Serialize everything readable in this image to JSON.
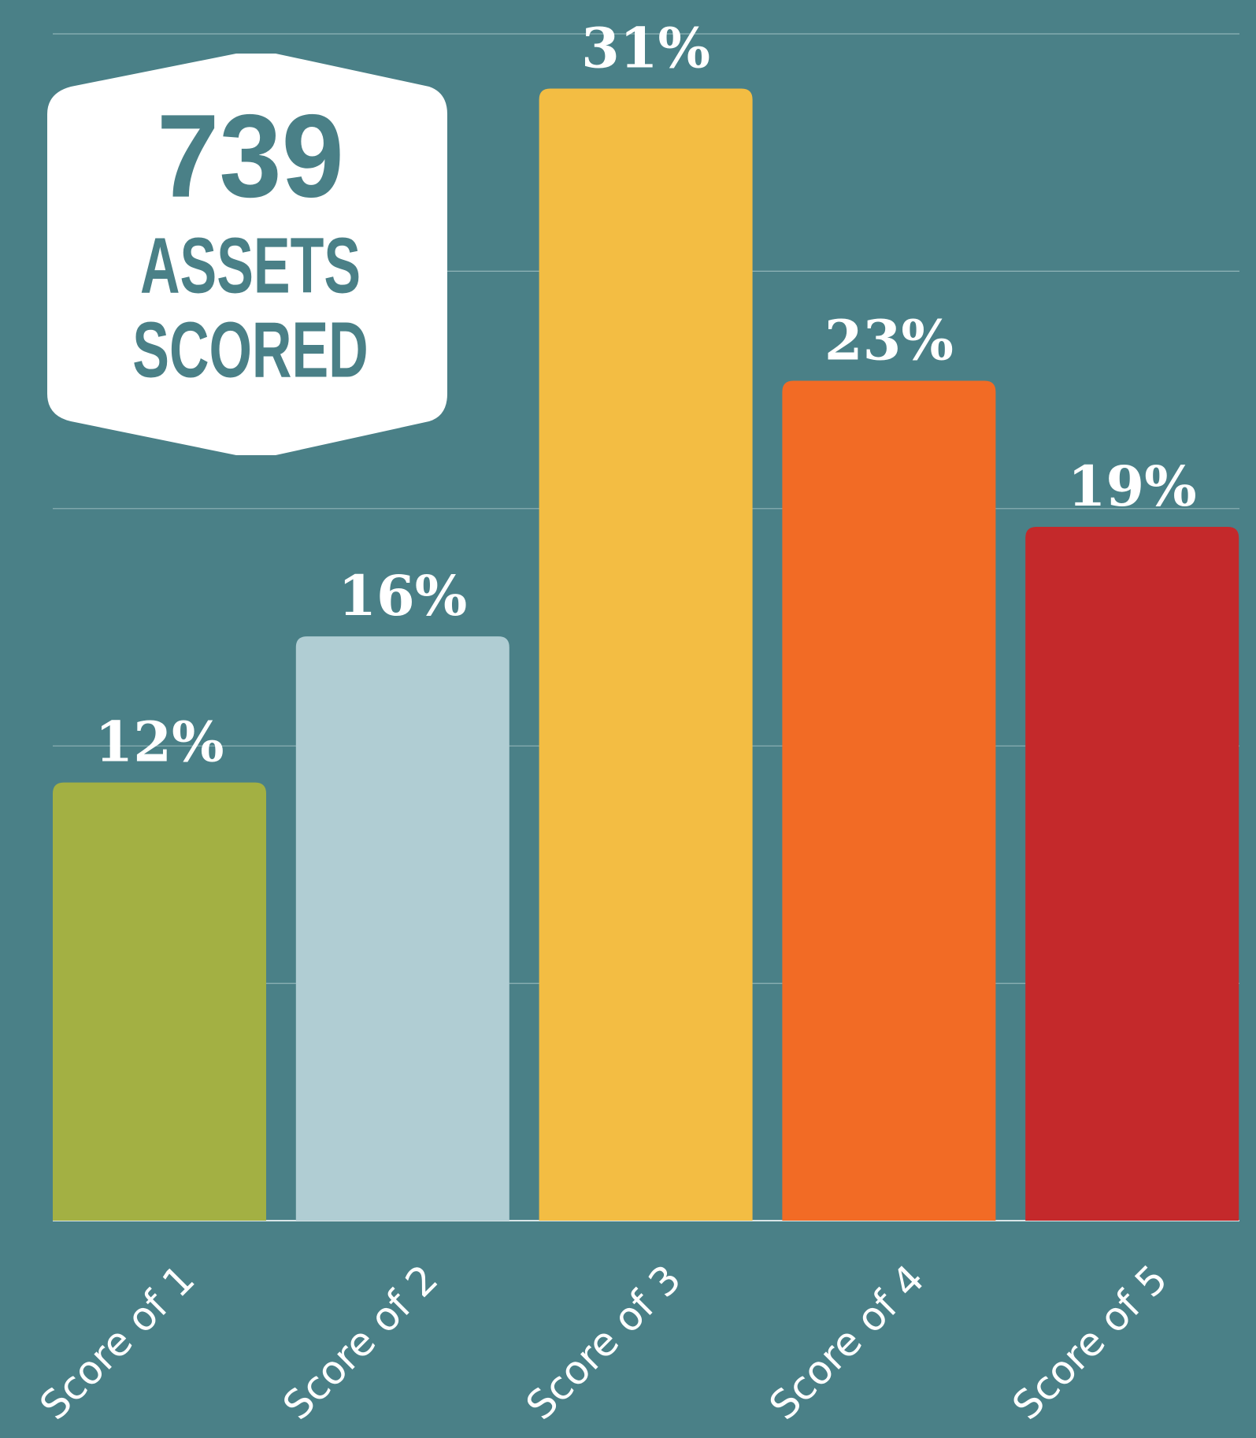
{
  "chart_data": {
    "type": "bar",
    "categories": [
      "Score of 1",
      "Score of 2",
      "Score of 3",
      "Score of 4",
      "Score of 5"
    ],
    "values": [
      12,
      16,
      31,
      23,
      19
    ],
    "value_labels": [
      "12%",
      "16%",
      "31%",
      "23%",
      "19%"
    ],
    "colors": [
      "#a3b043",
      "#b0cdd3",
      "#f3bd43",
      "#f26b25",
      "#c4292b"
    ],
    "ylim": [
      0,
      32.5
    ],
    "yticks": [
      0,
      6.5,
      13,
      19.5,
      26,
      32.5
    ],
    "grid": true,
    "annotations": [
      "739",
      "ASSETS",
      "SCORED"
    ]
  }
}
